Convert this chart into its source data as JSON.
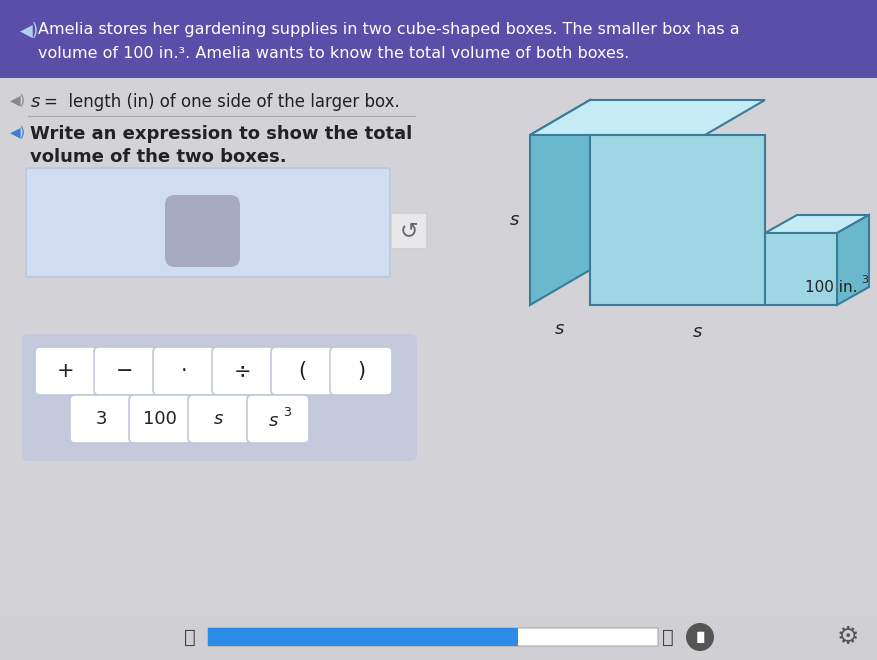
{
  "bg_color": "#d3d3d7",
  "header_bg": "#5b4ea8",
  "header_text_line1": "Amelia stores her gardening supplies in two cube-shaped boxes. The smaller box has a",
  "header_text_line2": "volume of 100 in.³. Amelia wants to know the total volume of both boxes.",
  "header_text_color": "#ffffff",
  "line1_text": " s  =  length (in) of one side of the larger box.",
  "line2_text_bold1": "Write an expression to show the total",
  "line2_text_bold2": "volume of the two boxes.",
  "input_box_bg": "#d0ddf0",
  "input_box_border": "#c0c8e0",
  "input_blob_color": "#9898b0",
  "keypad_bg": "#c5c9dc",
  "keypad_buttons_row1": [
    "+",
    "−",
    "·",
    "÷",
    "(",
    ")"
  ],
  "keypad_buttons_row2": [
    "3",
    "100",
    "s",
    "s³"
  ],
  "button_bg": "#ffffff",
  "button_border": "#c0c8dc",
  "cube_face_color": "#9fd6e4",
  "cube_top_color": "#c5ecf5",
  "cube_side_color": "#6ab8cc",
  "cube_edge_color": "#3a7a9a",
  "progress_bar_color": "#2b8ce6",
  "progress_bg_color": "#ffffff",
  "progress_track_bg": "#b0b0b8",
  "icon_color_gray": "#888888",
  "icon_color_blue": "#3b7fd4",
  "text_dark": "#222222",
  "sep_line_color": "#aaaaaa"
}
